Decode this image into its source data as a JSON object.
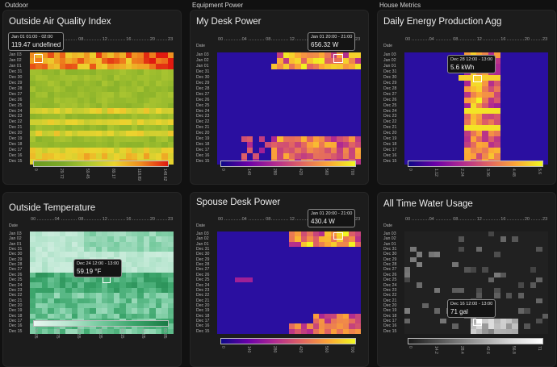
{
  "sections": {
    "outdoor": "Outdoor",
    "equipment": "Equipment Power",
    "house": "House Metrics"
  },
  "hour_labels": [
    "00",
    "04",
    "08",
    "12",
    "16",
    "20",
    "23"
  ],
  "date_header": "Date",
  "dates": [
    "Jan 03",
    "Jan 02",
    "Jan 01",
    "Dec 31",
    "Dec 30",
    "Dec 29",
    "Dec 28",
    "Dec 27",
    "Dec 26",
    "Dec 25",
    "Dec 24",
    "Dec 23",
    "Dec 22",
    "Dec 21",
    "Dec 20",
    "Dec 19",
    "Dec 18",
    "Dec 17",
    "Dec 16",
    "Dec 15"
  ],
  "cards": {
    "air": {
      "title": "Outside Air Quality Index",
      "legend_ticks": [
        "0",
        "29.72",
        "59.45",
        "89.17",
        "118.89",
        "148.62"
      ],
      "tooltip": {
        "time": "Jan 01 01:00 - 02:00",
        "value": "119.47 undefined"
      }
    },
    "temp": {
      "title": "Outside Temperature",
      "legend_ticks": [
        "34.05",
        "41.75",
        "49.55",
        "57.35",
        "65.15",
        "73.05",
        "80.85"
      ],
      "tooltip": {
        "time": "Dec 24 12:00 - 13:00",
        "value": "59.19 °F"
      }
    },
    "mydesk": {
      "title": "My Desk Power",
      "legend_ticks": [
        "0",
        "140",
        "280",
        "420",
        "560",
        "700"
      ],
      "tooltip": {
        "time": "Jan 01 20:00 - 21:00",
        "value": "656.32 W"
      }
    },
    "spouse": {
      "title": "Spouse Desk Power",
      "legend_ticks": [
        "0",
        "140",
        "280",
        "420",
        "560",
        "700"
      ],
      "tooltip": {
        "time": "Jan 01 20:00 - 21:00",
        "value": "430.4 W"
      }
    },
    "energy": {
      "title": "Daily Energy Production Agg",
      "legend_ticks": [
        "0",
        "1.12",
        "2.24",
        "3.36",
        "4.48",
        "5.6"
      ],
      "tooltip": {
        "time": "Dec 28 12:00 - 13:00",
        "value": "5.6 kWh"
      }
    },
    "water": {
      "title": "All Time Water Usage",
      "legend_ticks": [
        "0",
        "14.2",
        "28.4",
        "42.6",
        "56.8",
        "71"
      ],
      "tooltip": {
        "time": "Dec 16 12:00 - 13:00",
        "value": "71 gal"
      }
    }
  },
  "colors": {
    "background": "#111111",
    "card": "#1c1c1c",
    "aqi_low": "#6b9a1f",
    "aqi_high": "#e01a10",
    "temp_low": "#e8f6f0",
    "temp_high": "#1a7a44",
    "plasma_low": "#2a0fa0",
    "plasma_high": "#fde725",
    "water_high": "#ffffff"
  }
}
